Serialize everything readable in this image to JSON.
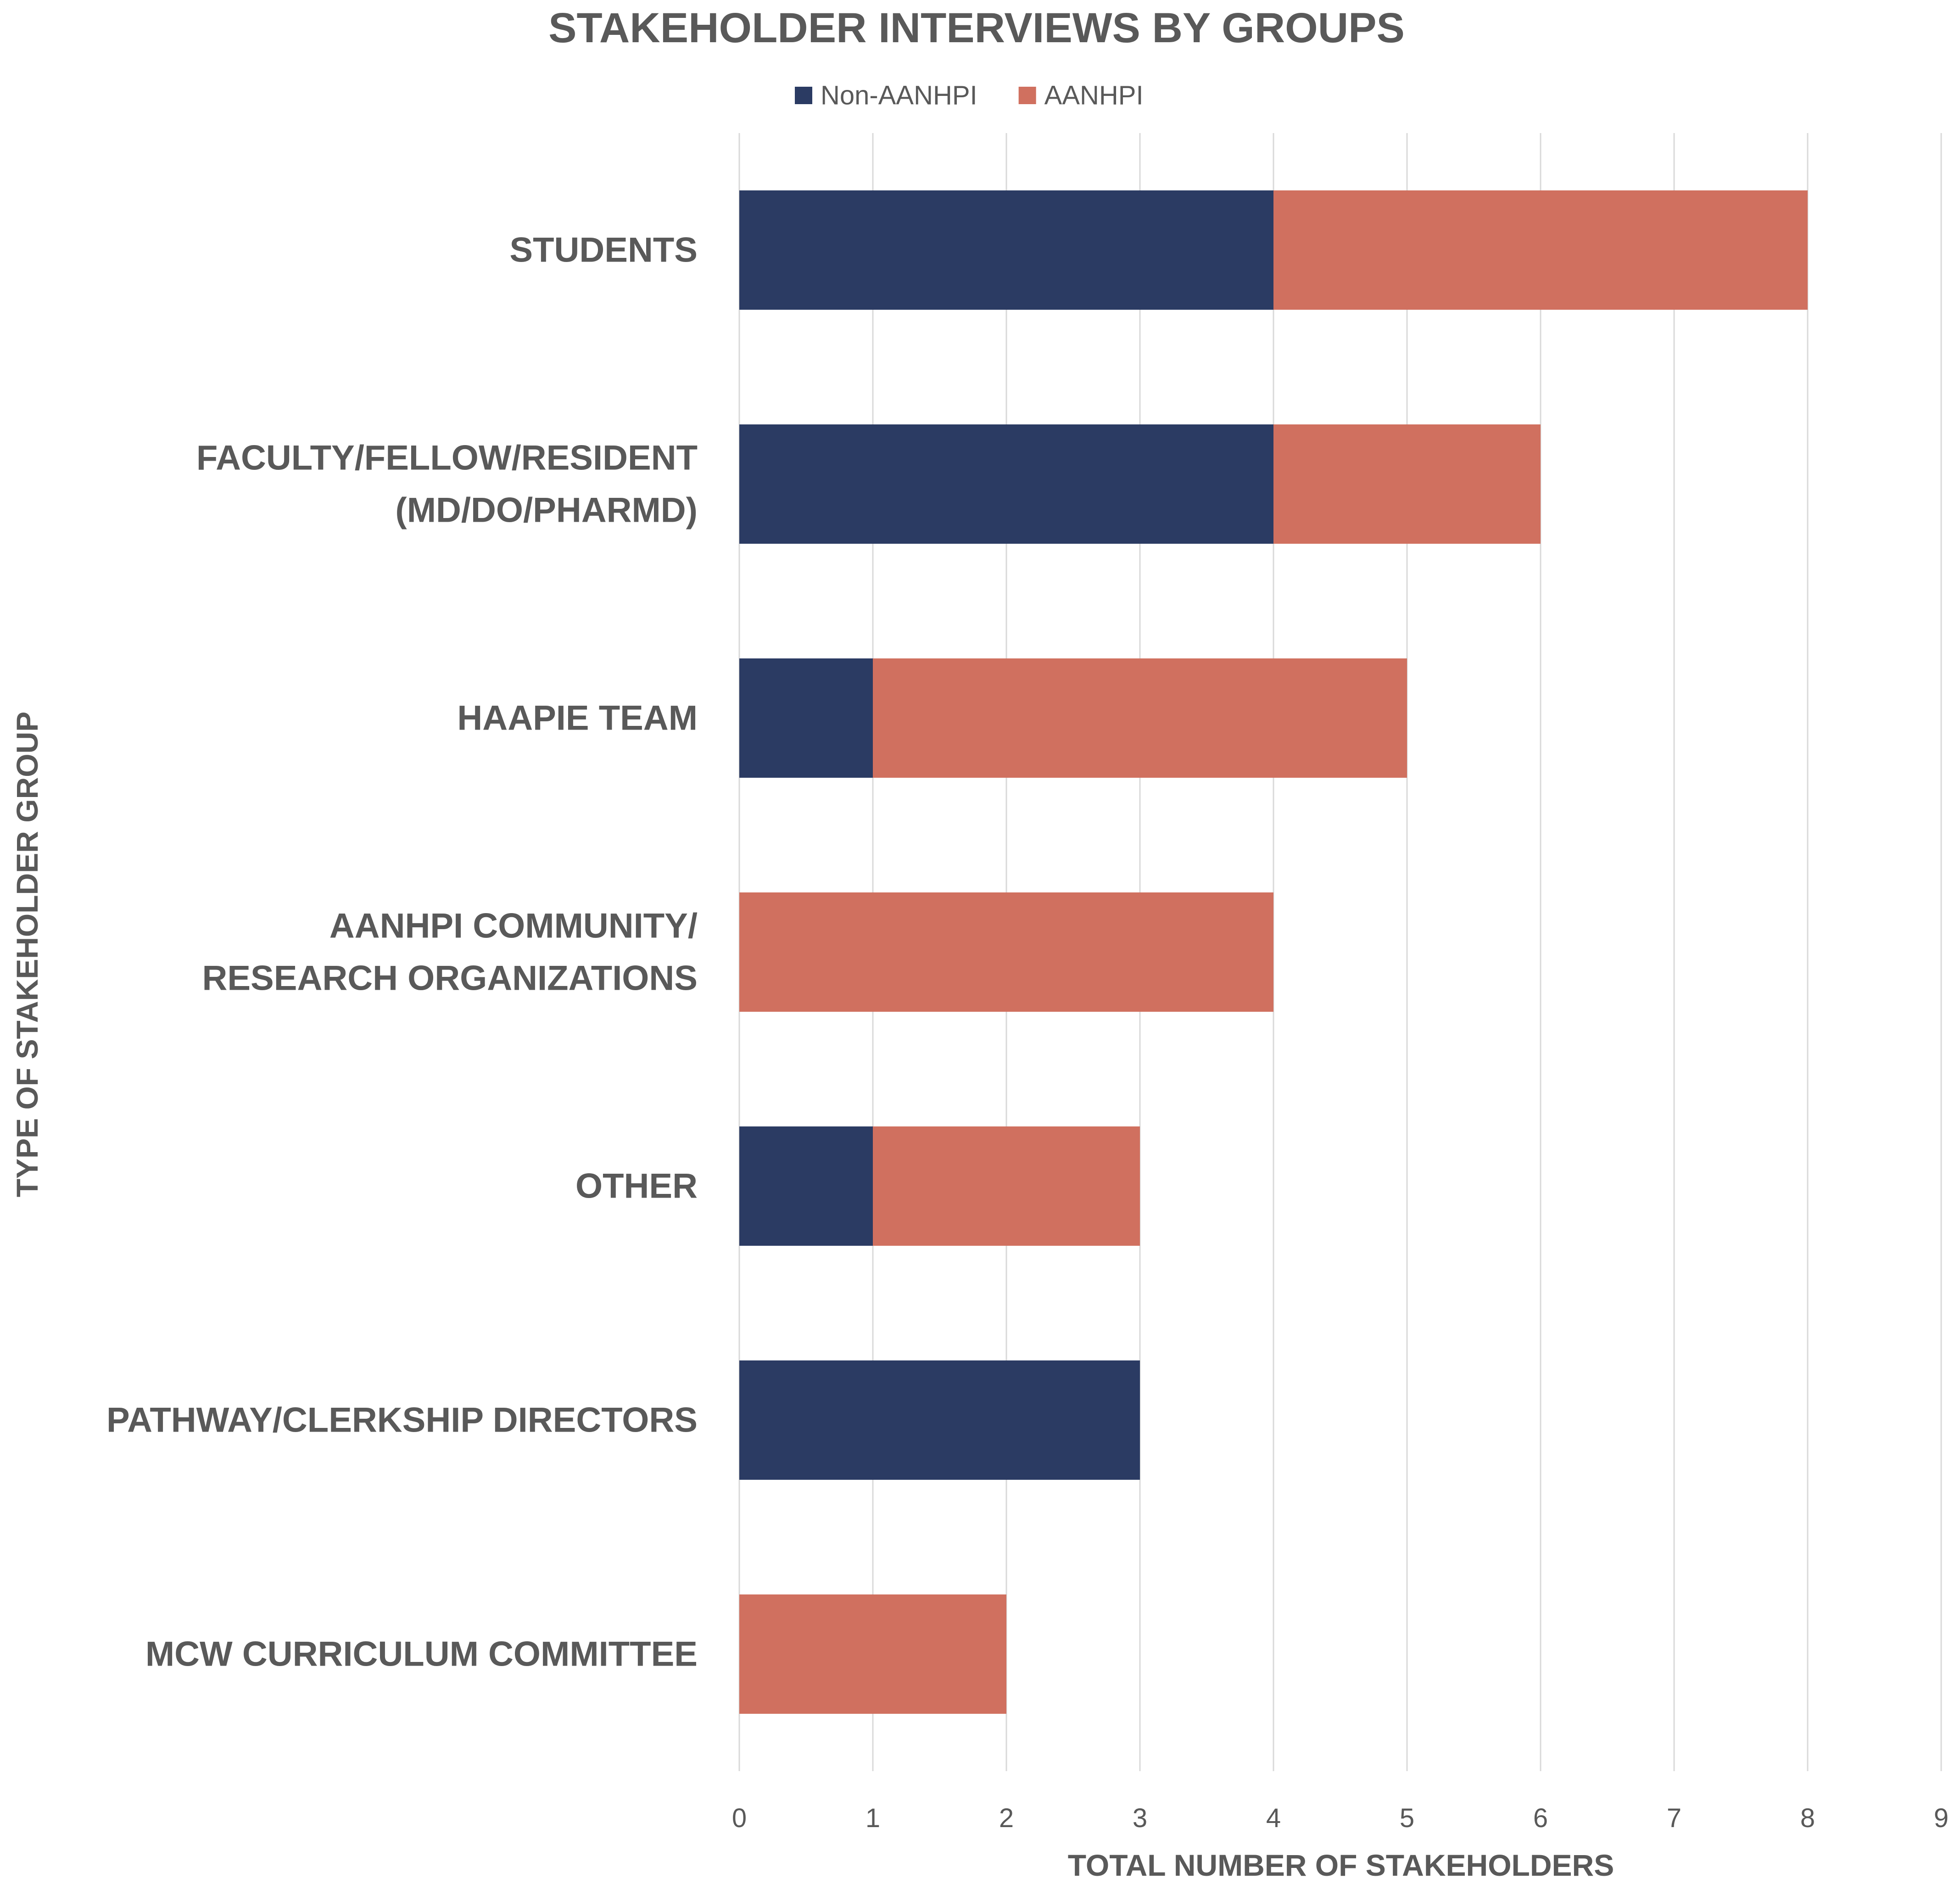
{
  "chart_data": {
    "type": "bar",
    "orientation": "horizontal",
    "stacked": true,
    "title": "STAKEHOLDER INTERVIEWS BY GROUPS",
    "xlabel": "TOTAL NUMBER OF STAKEHOLDERS",
    "ylabel": "TYPE OF STAKEHOLDER GROUP",
    "xlim": [
      0,
      9
    ],
    "xticks": [
      "0",
      "1",
      "2",
      "3",
      "4",
      "5",
      "6",
      "7",
      "8",
      "9"
    ],
    "grid": "vertical",
    "legend_position": "top",
    "categories": [
      [
        "STUDENTS"
      ],
      [
        "FACULTY/FELLOW/RESIDENT",
        "(MD/DO/PHARMD)"
      ],
      [
        "HAAPIE TEAM"
      ],
      [
        "AANHPI COMMUNITY/",
        "RESEARCH ORGANIZATIONS"
      ],
      [
        "OTHER"
      ],
      [
        "PATHWAY/CLERKSHIP DIRECTORS"
      ],
      [
        "MCW CURRICULUM COMMITTEE"
      ]
    ],
    "series": [
      {
        "name": "Non-AANHPI",
        "color": "#2b3b63",
        "values": [
          4,
          4,
          1,
          0,
          1,
          3,
          0
        ]
      },
      {
        "name": "AANHPI",
        "color": "#d0705f",
        "values": [
          4,
          2,
          4,
          4,
          2,
          0,
          2
        ]
      }
    ]
  },
  "colors": {
    "text": "#595959",
    "grid": "#d9d9d9",
    "axis": "#bfbfbf"
  }
}
